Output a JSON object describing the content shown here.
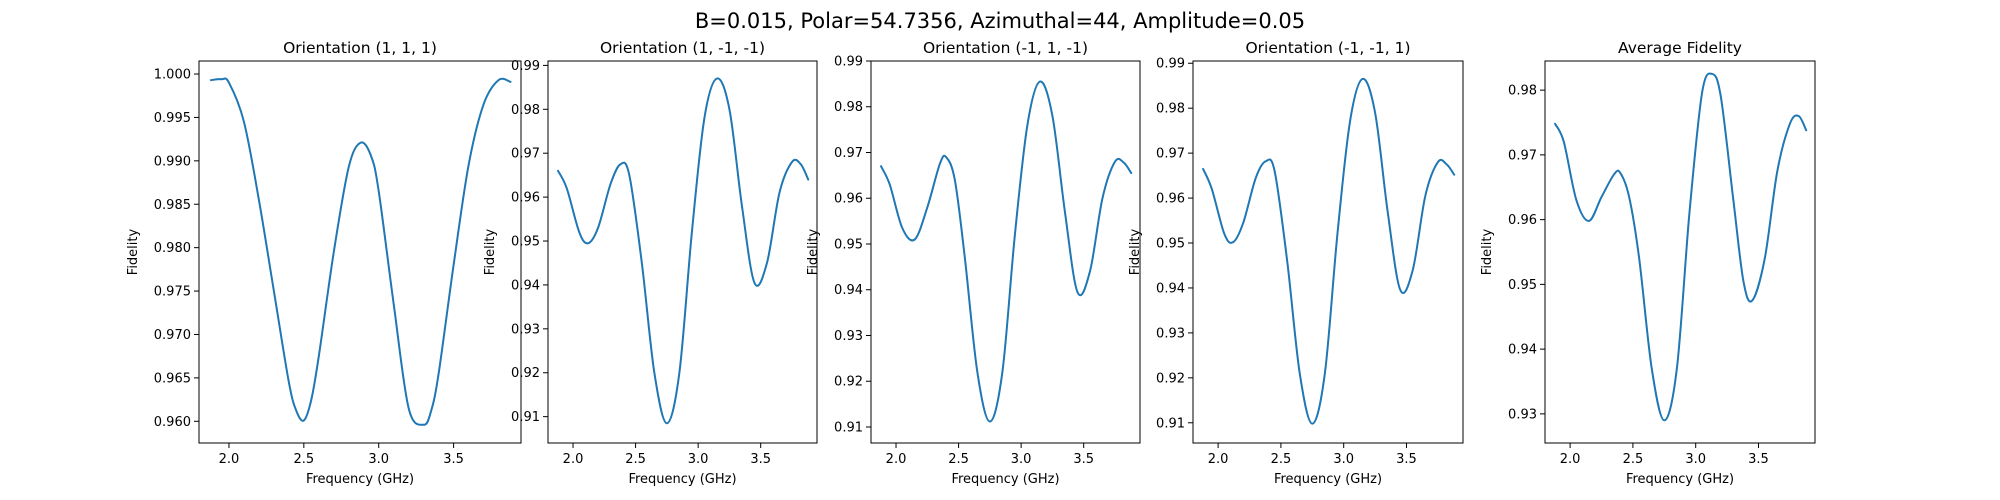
{
  "figure": {
    "suptitle": "B=0.015, Polar=54.7356, Azimuthal=44, Amplitude=0.05"
  },
  "colors": {
    "line": "#1f77b4",
    "axes": "#000000",
    "background": "#ffffff"
  },
  "chart_data": [
    {
      "type": "line",
      "title": "Orientation (1, 1, 1)",
      "xlabel": "Frequency (GHz)",
      "ylabel": "Fidelity",
      "xlim": [
        1.8,
        3.95
      ],
      "ylim": [
        0.9575,
        1.0015
      ],
      "xticks": [
        "2.0",
        "2.5",
        "3.0",
        "3.5"
      ],
      "yticks": [
        "0.960",
        "0.965",
        "0.970",
        "0.975",
        "0.980",
        "0.985",
        "0.990",
        "0.995",
        "1.000"
      ],
      "grid": false,
      "series": [
        {
          "x": [
            1.88,
            1.95,
            2.0,
            2.1,
            2.2,
            2.3,
            2.4,
            2.45,
            2.5,
            2.55,
            2.6,
            2.7,
            2.8,
            2.88,
            2.95,
            3.0,
            3.1,
            3.2,
            3.3,
            3.35,
            3.4,
            3.5,
            3.6,
            3.7,
            3.8,
            3.88
          ],
          "y": [
            0.9993,
            0.9994,
            0.999,
            0.9945,
            0.9855,
            0.975,
            0.9645,
            0.9612,
            0.9601,
            0.9625,
            0.9675,
            0.9795,
            0.9893,
            0.9921,
            0.9905,
            0.9865,
            0.9735,
            0.9615,
            0.9596,
            0.9612,
            0.9655,
            0.978,
            0.9895,
            0.9965,
            0.9993,
            0.9991
          ]
        }
      ]
    },
    {
      "type": "line",
      "title": "Orientation (1, -1, -1)",
      "xlabel": "Frequency (GHz)",
      "ylabel": "Fidelity",
      "xlim": [
        1.8,
        3.95
      ],
      "ylim": [
        0.904,
        0.991
      ],
      "xticks": [
        "2.0",
        "2.5",
        "3.0",
        "3.5"
      ],
      "yticks": [
        "0.91",
        "0.92",
        "0.93",
        "0.94",
        "0.95",
        "0.96",
        "0.97",
        "0.98",
        "0.99"
      ],
      "grid": false,
      "series": [
        {
          "x": [
            1.88,
            1.95,
            2.05,
            2.12,
            2.2,
            2.3,
            2.38,
            2.45,
            2.55,
            2.65,
            2.75,
            2.85,
            2.95,
            3.05,
            3.15,
            3.25,
            3.35,
            3.45,
            3.55,
            3.65,
            3.75,
            3.82,
            3.88
          ],
          "y": [
            0.966,
            0.962,
            0.952,
            0.9495,
            0.953,
            0.963,
            0.9675,
            0.965,
            0.945,
            0.92,
            0.9085,
            0.92,
            0.952,
            0.978,
            0.987,
            0.98,
            0.958,
            0.9405,
            0.945,
            0.961,
            0.968,
            0.9675,
            0.964
          ]
        }
      ]
    },
    {
      "type": "line",
      "title": "Orientation (-1, 1, -1)",
      "xlabel": "Frequency (GHz)",
      "ylabel": "Fidelity",
      "xlim": [
        1.8,
        3.95
      ],
      "ylim": [
        0.9065,
        0.99
      ],
      "xticks": [
        "2.0",
        "2.5",
        "3.0",
        "3.5"
      ],
      "yticks": [
        "0.91",
        "0.92",
        "0.93",
        "0.94",
        "0.95",
        "0.96",
        "0.97",
        "0.98",
        "0.99"
      ],
      "grid": false,
      "series": [
        {
          "x": [
            1.88,
            1.95,
            2.05,
            2.15,
            2.25,
            2.35,
            2.4,
            2.47,
            2.55,
            2.65,
            2.75,
            2.85,
            2.95,
            3.05,
            3.15,
            3.25,
            3.35,
            3.45,
            3.55,
            3.65,
            3.75,
            3.82,
            3.88
          ],
          "y": [
            0.967,
            0.963,
            0.9535,
            0.951,
            0.958,
            0.9675,
            0.969,
            0.964,
            0.947,
            0.922,
            0.9112,
            0.922,
            0.952,
            0.976,
            0.9855,
            0.978,
            0.957,
            0.9395,
            0.944,
            0.96,
            0.968,
            0.9678,
            0.9655
          ]
        }
      ]
    },
    {
      "type": "line",
      "title": "Orientation (-1, -1, 1)",
      "xlabel": "Frequency (GHz)",
      "ylabel": "Fidelity",
      "xlim": [
        1.8,
        3.95
      ],
      "ylim": [
        0.9055,
        0.9905
      ],
      "xticks": [
        "2.0",
        "2.5",
        "3.0",
        "3.5"
      ],
      "yticks": [
        "0.91",
        "0.92",
        "0.93",
        "0.94",
        "0.95",
        "0.96",
        "0.97",
        "0.98",
        "0.99"
      ],
      "grid": false,
      "series": [
        {
          "x": [
            1.88,
            1.95,
            2.05,
            2.12,
            2.2,
            2.3,
            2.38,
            2.45,
            2.55,
            2.65,
            2.75,
            2.85,
            2.95,
            3.05,
            3.15,
            3.25,
            3.35,
            3.45,
            3.55,
            3.65,
            3.75,
            3.82,
            3.88
          ],
          "y": [
            0.9665,
            0.962,
            0.952,
            0.9502,
            0.9545,
            0.9645,
            0.9682,
            0.966,
            0.946,
            0.921,
            0.9098,
            0.921,
            0.952,
            0.977,
            0.9865,
            0.979,
            0.957,
            0.9396,
            0.944,
            0.9605,
            0.968,
            0.9675,
            0.9652
          ]
        }
      ]
    },
    {
      "type": "line",
      "title": "Average Fidelity",
      "xlabel": "Frequency (GHz)",
      "ylabel": "Fidelity",
      "xlim": [
        1.8,
        3.95
      ],
      "ylim": [
        0.9255,
        0.9845
      ],
      "xticks": [
        "2.0",
        "2.5",
        "3.0",
        "3.5"
      ],
      "yticks": [
        "0.93",
        "0.94",
        "0.95",
        "0.96",
        "0.97",
        "0.98"
      ],
      "grid": false,
      "series": [
        {
          "x": [
            1.88,
            1.95,
            2.05,
            2.15,
            2.25,
            2.35,
            2.4,
            2.47,
            2.55,
            2.65,
            2.75,
            2.85,
            2.95,
            3.05,
            3.13,
            3.2,
            3.3,
            3.38,
            3.45,
            3.55,
            3.65,
            3.75,
            3.82,
            3.88
          ],
          "y": [
            0.9748,
            0.972,
            0.963,
            0.9598,
            0.9635,
            0.967,
            0.9672,
            0.9635,
            0.954,
            0.937,
            0.929,
            0.937,
            0.961,
            0.9795,
            0.9825,
            0.979,
            0.963,
            0.9505,
            0.9475,
            0.954,
            0.9675,
            0.9748,
            0.976,
            0.9738
          ]
        }
      ]
    }
  ]
}
